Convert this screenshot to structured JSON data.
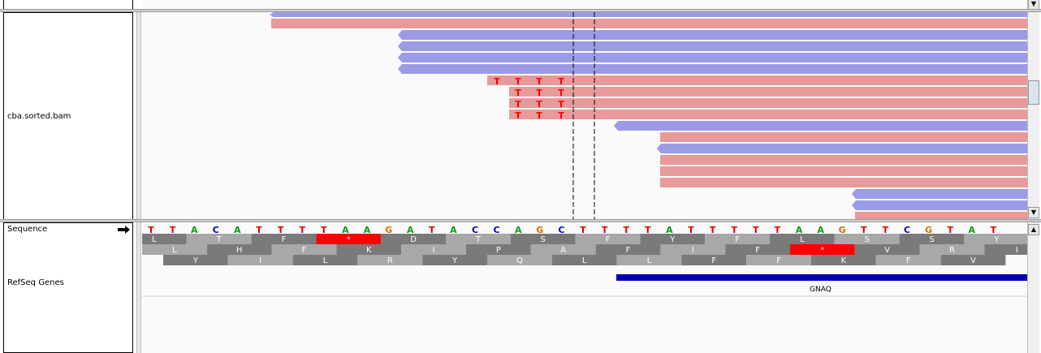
{
  "tracks": {
    "alignment_label": "cba.sorted.bam",
    "sequence_label": "Sequence",
    "refseq_label": "RefSeq Genes"
  },
  "sequence": {
    "bases": "TTACATTTTAAGATACCAGCTTTTATTTTTAAGTTCGTAT",
    "colors": {
      "A": "#00a000",
      "C": "#0000c8",
      "G": "#d17105",
      "T": "#e00000"
    }
  },
  "translation": {
    "frame1": [
      "L",
      "T",
      "F",
      "*",
      "D",
      "T",
      "S",
      "F",
      "Y",
      "F",
      "L",
      "S",
      "S",
      "Y"
    ],
    "frame2": [
      "L",
      "H",
      "F",
      "K",
      "I",
      "P",
      "A",
      "F",
      "I",
      "F",
      "*",
      "V",
      "R",
      "I"
    ],
    "frame3": [
      "Y",
      "I",
      "L",
      "R",
      "Y",
      "Q",
      "L",
      "L",
      "F",
      "F",
      "K",
      "F",
      "V"
    ]
  },
  "gene": {
    "name": "GNAQ",
    "color": "#0000b0"
  },
  "reads": {
    "forward_color": "#e8999a",
    "reverse_color": "#9b9be6",
    "mismatch_base": "T",
    "mismatch_color": "#ff0000"
  },
  "icons": {
    "strand": "arrow-right-icon",
    "up": "scroll-up-icon",
    "down": "scroll-down-icon"
  }
}
